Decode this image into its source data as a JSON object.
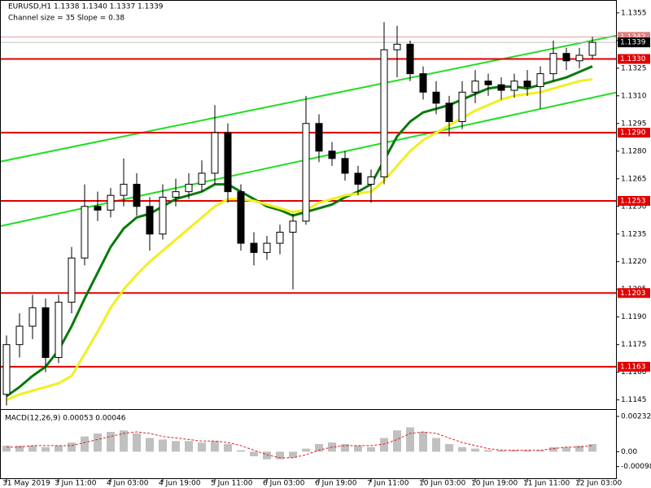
{
  "chart_data": {
    "type": "candlestick",
    "title": "EURUSD,H1  1.1338 1.1340 1.1337 1.1339",
    "annotation": "Channel size = 35 Slope = 0.38",
    "categories": [
      "31 May 2019",
      null,
      null,
      null,
      "3 Jun 11:00",
      null,
      null,
      null,
      "4 Jun 03:00",
      null,
      null,
      null,
      "4 Jun 19:00",
      null,
      null,
      null,
      "5 Jun 11:00",
      null,
      null,
      null,
      "6 Jun 03:00",
      null,
      null,
      null,
      "6 Jun 19:00",
      null,
      null,
      null,
      "7 Jun 11:00",
      null,
      null,
      null,
      "10 Jun 03:00",
      null,
      null,
      null,
      "10 Jun 19:00",
      null,
      null,
      null,
      "11 Jun 11:00",
      null,
      null,
      null,
      "12 Jun 03:00",
      null
    ],
    "open": [
      1.1148,
      1.1175,
      1.1185,
      1.1195,
      1.1168,
      1.1198,
      1.1222,
      1.125,
      1.1248,
      1.1256,
      1.1262,
      1.125,
      1.1235,
      1.1255,
      1.1258,
      1.1262,
      1.1268,
      1.129,
      1.1258,
      1.123,
      1.1225,
      1.123,
      1.1236,
      1.1242,
      1.1295,
      1.128,
      1.1276,
      1.1268,
      1.1262,
      1.1266,
      1.1335,
      1.1338,
      1.1322,
      1.1312,
      1.1306,
      1.1296,
      1.1312,
      1.1318,
      1.1316,
      1.1313,
      1.1318,
      1.1315,
      1.1322,
      1.1333,
      1.1329,
      1.1332
    ],
    "high": [
      1.118,
      1.1192,
      1.1202,
      1.12,
      1.1202,
      1.1228,
      1.1262,
      1.1258,
      1.126,
      1.1276,
      1.1268,
      1.1255,
      1.1262,
      1.1265,
      1.1268,
      1.1275,
      1.1305,
      1.1295,
      1.1262,
      1.1236,
      1.1234,
      1.124,
      1.1246,
      1.131,
      1.13,
      1.1285,
      1.128,
      1.1272,
      1.127,
      1.135,
      1.1348,
      1.134,
      1.1326,
      1.1318,
      1.131,
      1.1318,
      1.1324,
      1.1322,
      1.132,
      1.1322,
      1.1324,
      1.1326,
      1.134,
      1.1336,
      1.1336,
      1.1342
    ],
    "low": [
      1.1142,
      1.1168,
      1.1178,
      1.116,
      1.1165,
      1.1192,
      1.1218,
      1.1242,
      1.1244,
      1.125,
      1.1245,
      1.1226,
      1.1232,
      1.125,
      1.1254,
      1.1258,
      1.1262,
      1.1252,
      1.1226,
      1.1218,
      1.1221,
      1.1224,
      1.1205,
      1.124,
      1.1274,
      1.1272,
      1.1264,
      1.1256,
      1.1252,
      1.1262,
      1.132,
      1.1318,
      1.1308,
      1.13,
      1.1288,
      1.1292,
      1.1306,
      1.131,
      1.1308,
      1.1309,
      1.131,
      1.1303,
      1.1318,
      1.1324,
      1.1325,
      1.133
    ],
    "close": [
      1.1175,
      1.1185,
      1.1195,
      1.1168,
      1.1198,
      1.1222,
      1.125,
      1.1248,
      1.1256,
      1.1262,
      1.125,
      1.1235,
      1.1255,
      1.1258,
      1.1262,
      1.1268,
      1.129,
      1.1258,
      1.123,
      1.1225,
      1.123,
      1.1236,
      1.1242,
      1.1295,
      1.128,
      1.1276,
      1.1268,
      1.1262,
      1.1266,
      1.1335,
      1.1338,
      1.1322,
      1.1312,
      1.1306,
      1.1296,
      1.1312,
      1.1318,
      1.1316,
      1.1313,
      1.1318,
      1.1315,
      1.1322,
      1.1333,
      1.1329,
      1.1332,
      1.1339
    ],
    "up_color": "#ffffff",
    "down_color": "#000000",
    "ylim": [
      1.114,
      1.1362
    ],
    "yticks": [
      1.1355,
      {
        "value": 1.134,
        "label": "1.1340"
      },
      1.1325,
      {
        "value": 1.131,
        "label": "1.1310"
      },
      1.1295,
      {
        "value": 1.128,
        "label": "1.1280"
      },
      1.1265,
      {
        "value": 1.125,
        "label": "1.1250"
      },
      1.1235,
      {
        "value": 1.122,
        "label": "1.1220"
      },
      1.1205,
      {
        "value": 1.119,
        "label": "1.1190"
      },
      1.1175,
      {
        "value": 1.116,
        "label": "1.1160"
      },
      1.1145
    ],
    "levels": [
      {
        "value": 1.133,
        "label": "1.1330"
      },
      {
        "value": 1.129,
        "label": "1.1290"
      },
      1.1253,
      1.1203,
      1.1163
    ],
    "level_color": "#e00000",
    "last_price": 1.1339,
    "ask_price": 1.1342,
    "series": [
      {
        "color": "#0a7a0a",
        "values": [
          1.1147,
          1.1152,
          1.1158,
          1.1163,
          1.1172,
          1.1185,
          1.12,
          1.1214,
          1.1228,
          1.1238,
          1.1244,
          1.1246,
          1.125,
          1.1254,
          1.1256,
          1.1258,
          1.1262,
          1.1262,
          1.1258,
          1.1254,
          1.125,
          1.1248,
          1.1245,
          1.1247,
          1.1249,
          1.1251,
          1.1255,
          1.1258,
          1.1262,
          1.1275,
          1.1288,
          1.1296,
          1.1301,
          1.1303,
          1.1305,
          1.1308,
          1.1311,
          1.1314,
          1.1315,
          1.1315,
          1.1314,
          1.1316,
          1.1318,
          1.132,
          1.1323,
          1.1326
        ]
      },
      {
        "color": "#f0f020",
        "values": [
          1.1145,
          1.1148,
          1.115,
          1.1152,
          1.1154,
          1.1158,
          1.117,
          1.1182,
          1.1195,
          1.1205,
          1.1213,
          1.122,
          1.1226,
          1.1232,
          1.1238,
          1.1244,
          1.125,
          1.1254,
          1.1254,
          1.1253,
          1.1251,
          1.1249,
          1.1247,
          1.1248,
          1.1252,
          1.1254,
          1.1256,
          1.1257,
          1.1258,
          1.1264,
          1.1272,
          1.128,
          1.1286,
          1.129,
          1.1294,
          1.1298,
          1.1302,
          1.1305,
          1.1308,
          1.131,
          1.1311,
          1.1312,
          1.1314,
          1.1316,
          1.1318,
          1.1319
        ]
      }
    ],
    "trendlines": [
      {
        "color": "#22dd22",
        "start": 1.1275,
        "end": 1.134
      },
      {
        "color": "#22dd22",
        "start": 1.124,
        "end": 1.1309
      }
    ],
    "macd": {
      "title": "MACD(12,26,9) 0.00053 0.00046",
      "ylim": [
        -0.0018,
        0.0028
      ],
      "yticks": [
        0.00232,
        {
          "value": 0,
          "label": "0.00"
        },
        -0.00098
      ],
      "histogram_color": "#c0c0c0",
      "signal_color": "#e02020",
      "histogram": [
        0.0004,
        0.0004,
        0.0004,
        0.0003,
        0.0004,
        0.0006,
        0.001,
        0.0012,
        0.0013,
        0.0014,
        0.0012,
        0.0009,
        0.0008,
        0.0007,
        0.0007,
        0.0006,
        0.0007,
        0.0005,
        0.0001,
        -0.0003,
        -0.0005,
        -0.0005,
        -0.0004,
        0.0002,
        0.0005,
        0.0006,
        0.0005,
        0.0004,
        0.0003,
        0.0009,
        0.0014,
        0.0016,
        0.0013,
        0.0009,
        0.0005,
        0.0003,
        0.0002,
        0.0001,
        0.0001,
        0.0001,
        0.0001,
        0.0001,
        0.0003,
        0.0003,
        0.0004,
        0.0005
      ],
      "signal": [
        0.0003,
        0.0003,
        0.0004,
        0.0004,
        0.0004,
        0.0004,
        0.0006,
        0.0008,
        0.001,
        0.0012,
        0.0013,
        0.0012,
        0.001,
        0.0009,
        0.0008,
        0.0007,
        0.0007,
        0.0006,
        0.0004,
        0.0001,
        -0.0002,
        -0.0004,
        -0.0004,
        -0.0002,
        0.0001,
        0.0003,
        0.0004,
        0.0004,
        0.0004,
        0.0005,
        0.0008,
        0.0012,
        0.0013,
        0.0012,
        0.0009,
        0.0006,
        0.0004,
        0.0002,
        0.0001,
        0.0001,
        0.0001,
        0.0001,
        0.0002,
        0.0003,
        0.0003,
        0.0004
      ]
    }
  }
}
